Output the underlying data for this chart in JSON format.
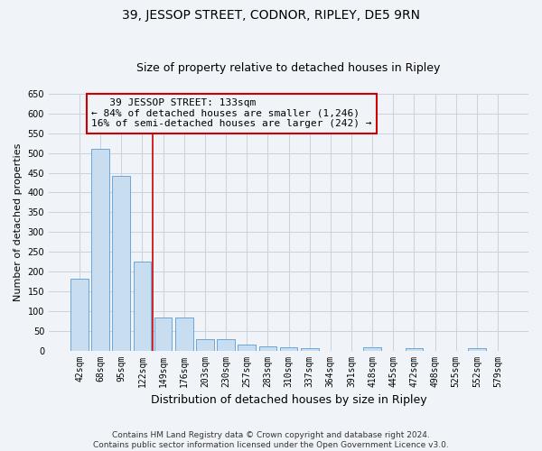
{
  "title": "39, JESSOP STREET, CODNOR, RIPLEY, DE5 9RN",
  "subtitle": "Size of property relative to detached houses in Ripley",
  "xlabel": "Distribution of detached houses by size in Ripley",
  "ylabel": "Number of detached properties",
  "categories": [
    "42sqm",
    "68sqm",
    "95sqm",
    "122sqm",
    "149sqm",
    "176sqm",
    "203sqm",
    "230sqm",
    "257sqm",
    "283sqm",
    "310sqm",
    "337sqm",
    "364sqm",
    "391sqm",
    "418sqm",
    "445sqm",
    "472sqm",
    "498sqm",
    "525sqm",
    "552sqm",
    "579sqm"
  ],
  "values": [
    182,
    510,
    442,
    225,
    83,
    83,
    28,
    28,
    15,
    10,
    7,
    5,
    0,
    0,
    7,
    0,
    5,
    0,
    0,
    5,
    0
  ],
  "bar_color": "#c9ddf0",
  "bar_edge_color": "#5b9bd5",
  "grid_color": "#c8d4e0",
  "background_color": "#f0f4f8",
  "annotation_line_color": "#cc0000",
  "annotation_box_edge_color": "#cc0000",
  "annotation_text_line1": "   39 JESSOP STREET: 133sqm",
  "annotation_text_line2": "← 84% of detached houses are smaller (1,246)",
  "annotation_text_line3": "16% of semi-detached houses are larger (242) →",
  "property_bar_index": 3,
  "ylim": [
    0,
    650
  ],
  "yticks": [
    0,
    50,
    100,
    150,
    200,
    250,
    300,
    350,
    400,
    450,
    500,
    550,
    600,
    650
  ],
  "footnote_line1": "Contains HM Land Registry data © Crown copyright and database right 2024.",
  "footnote_line2": "Contains public sector information licensed under the Open Government Licence v3.0.",
  "title_fontsize": 10,
  "subtitle_fontsize": 9,
  "xlabel_fontsize": 9,
  "ylabel_fontsize": 8,
  "annotation_fontsize": 8,
  "tick_fontsize": 7,
  "footnote_fontsize": 6.5
}
